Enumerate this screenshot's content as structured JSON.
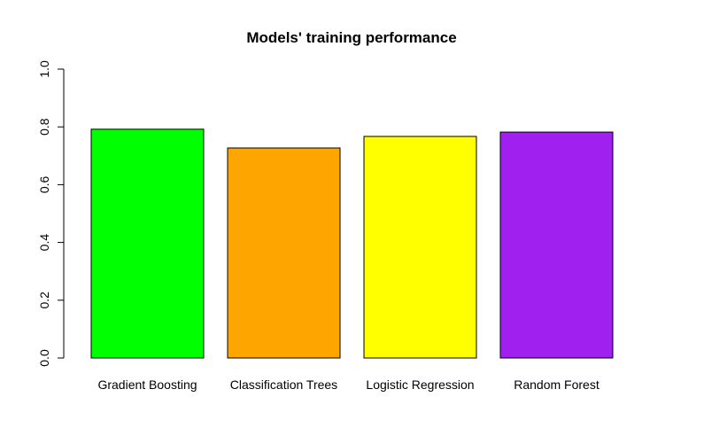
{
  "chart_data": {
    "type": "bar",
    "title": "Models' training performance",
    "xlabel": "",
    "ylabel": "",
    "categories": [
      "Gradient Boosting",
      "Classification Trees",
      "Logistic Regression",
      "Random Forest"
    ],
    "values": [
      0.792,
      0.727,
      0.767,
      0.782
    ],
    "colors": [
      "#00ff00",
      "#ffa500",
      "#ffff00",
      "#a020f0"
    ],
    "ylim": [
      0,
      1
    ],
    "yticks": [
      0.0,
      0.2,
      0.4,
      0.6,
      0.8,
      1.0
    ],
    "ytick_labels": [
      "0.0",
      "0.2",
      "0.4",
      "0.6",
      "0.8",
      "1.0"
    ],
    "grid": false,
    "legend": "none"
  }
}
